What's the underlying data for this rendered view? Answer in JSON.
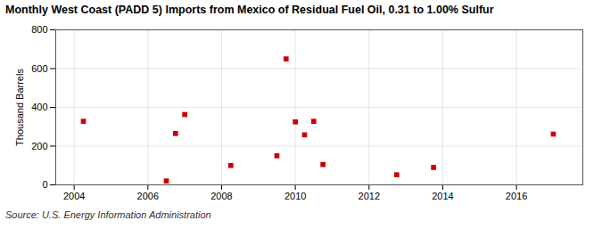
{
  "chart_data": {
    "type": "scatter",
    "title": "Monthly West Coast (PADD 5) Imports from Mexico of Residual Fuel Oil, 0.31 to 1.00% Sulfur",
    "ylabel": "Thousand Barrels",
    "annotation": "Source: U.S. Energy Information Administration",
    "x": [
      2004.25,
      2006.5,
      2006.75,
      2007.0,
      2008.25,
      2009.5,
      2009.75,
      2010.0,
      2010.25,
      2010.5,
      2010.75,
      2012.75,
      2013.75,
      2017.0
    ],
    "values": [
      328,
      20,
      265,
      363,
      100,
      150,
      650,
      325,
      258,
      328,
      105,
      52,
      90,
      262
    ],
    "color": "#cc0000",
    "marker": "square",
    "xlim": [
      2003.5,
      2017.8
    ],
    "ylim": [
      0,
      800
    ],
    "xticks": [
      2004,
      2006,
      2008,
      2010,
      2012,
      2014,
      2016
    ],
    "yticks": [
      0,
      200,
      400,
      600,
      800
    ],
    "grid": true
  }
}
